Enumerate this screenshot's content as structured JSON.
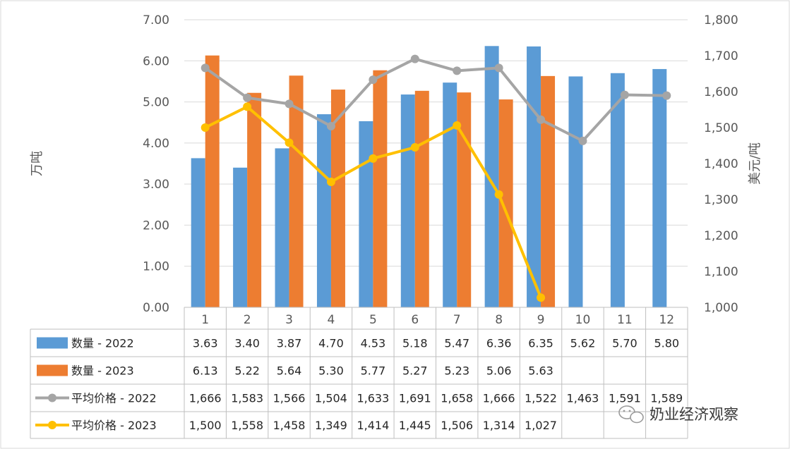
{
  "chart_data": {
    "type": "bar+line",
    "categories": [
      "1",
      "2",
      "3",
      "4",
      "5",
      "6",
      "7",
      "8",
      "9",
      "10",
      "11",
      "12"
    ],
    "bar_series": [
      {
        "name": "数量 - 2022",
        "color": "#5b9bd5",
        "values": [
          3.63,
          3.4,
          3.87,
          4.7,
          4.53,
          5.18,
          5.47,
          6.36,
          6.35,
          5.62,
          5.7,
          5.8
        ],
        "labels": [
          "3.63",
          "3.40",
          "3.87",
          "4.70",
          "4.53",
          "5.18",
          "5.47",
          "6.36",
          "6.35",
          "5.62",
          "5.70",
          "5.80"
        ]
      },
      {
        "name": "数量 - 2023",
        "color": "#ed7d31",
        "values": [
          6.13,
          5.22,
          5.64,
          5.3,
          5.77,
          5.27,
          5.23,
          5.06,
          5.63,
          null,
          null,
          null
        ],
        "labels": [
          "6.13",
          "5.22",
          "5.64",
          "5.30",
          "5.77",
          "5.27",
          "5.23",
          "5.06",
          "5.63",
          "",
          "",
          ""
        ]
      }
    ],
    "line_series": [
      {
        "name": "平均价格 - 2022",
        "color": "#a5a5a5",
        "values": [
          1666,
          1583,
          1566,
          1504,
          1633,
          1691,
          1658,
          1666,
          1522,
          1463,
          1591,
          1589
        ],
        "labels": [
          "1,666",
          "1,583",
          "1,566",
          "1,504",
          "1,633",
          "1,691",
          "1,658",
          "1,666",
          "1,522",
          "1,463",
          "1,591",
          "1,589"
        ]
      },
      {
        "name": "平均价格 - 2023",
        "color": "#ffc000",
        "values": [
          1500,
          1558,
          1458,
          1349,
          1414,
          1445,
          1506,
          1314,
          1027,
          null,
          null,
          null
        ],
        "labels": [
          "1,500",
          "1,558",
          "1,458",
          "1,349",
          "1,414",
          "1,445",
          "1,506",
          "1,314",
          "1,027",
          "",
          "",
          ""
        ]
      }
    ],
    "y_left": {
      "label": "万吨",
      "min": 0,
      "max": 7,
      "ticks": [
        0,
        1,
        2,
        3,
        4,
        5,
        6,
        7
      ],
      "tick_labels": [
        "0.00",
        "1.00",
        "2.00",
        "3.00",
        "4.00",
        "5.00",
        "6.00",
        "7.00"
      ]
    },
    "y_right": {
      "label": "美元/吨",
      "min": 1000,
      "max": 1800,
      "ticks": [
        1000,
        1100,
        1200,
        1300,
        1400,
        1500,
        1600,
        1700,
        1800
      ],
      "tick_labels": [
        "1,000",
        "1,100",
        "1,200",
        "1,300",
        "1,400",
        "1,500",
        "1,600",
        "1,700",
        "1,800"
      ]
    },
    "grid": true,
    "legend": "data-table-below"
  },
  "watermark": {
    "text": "奶业经济观察",
    "icon": "wechat-icon"
  }
}
